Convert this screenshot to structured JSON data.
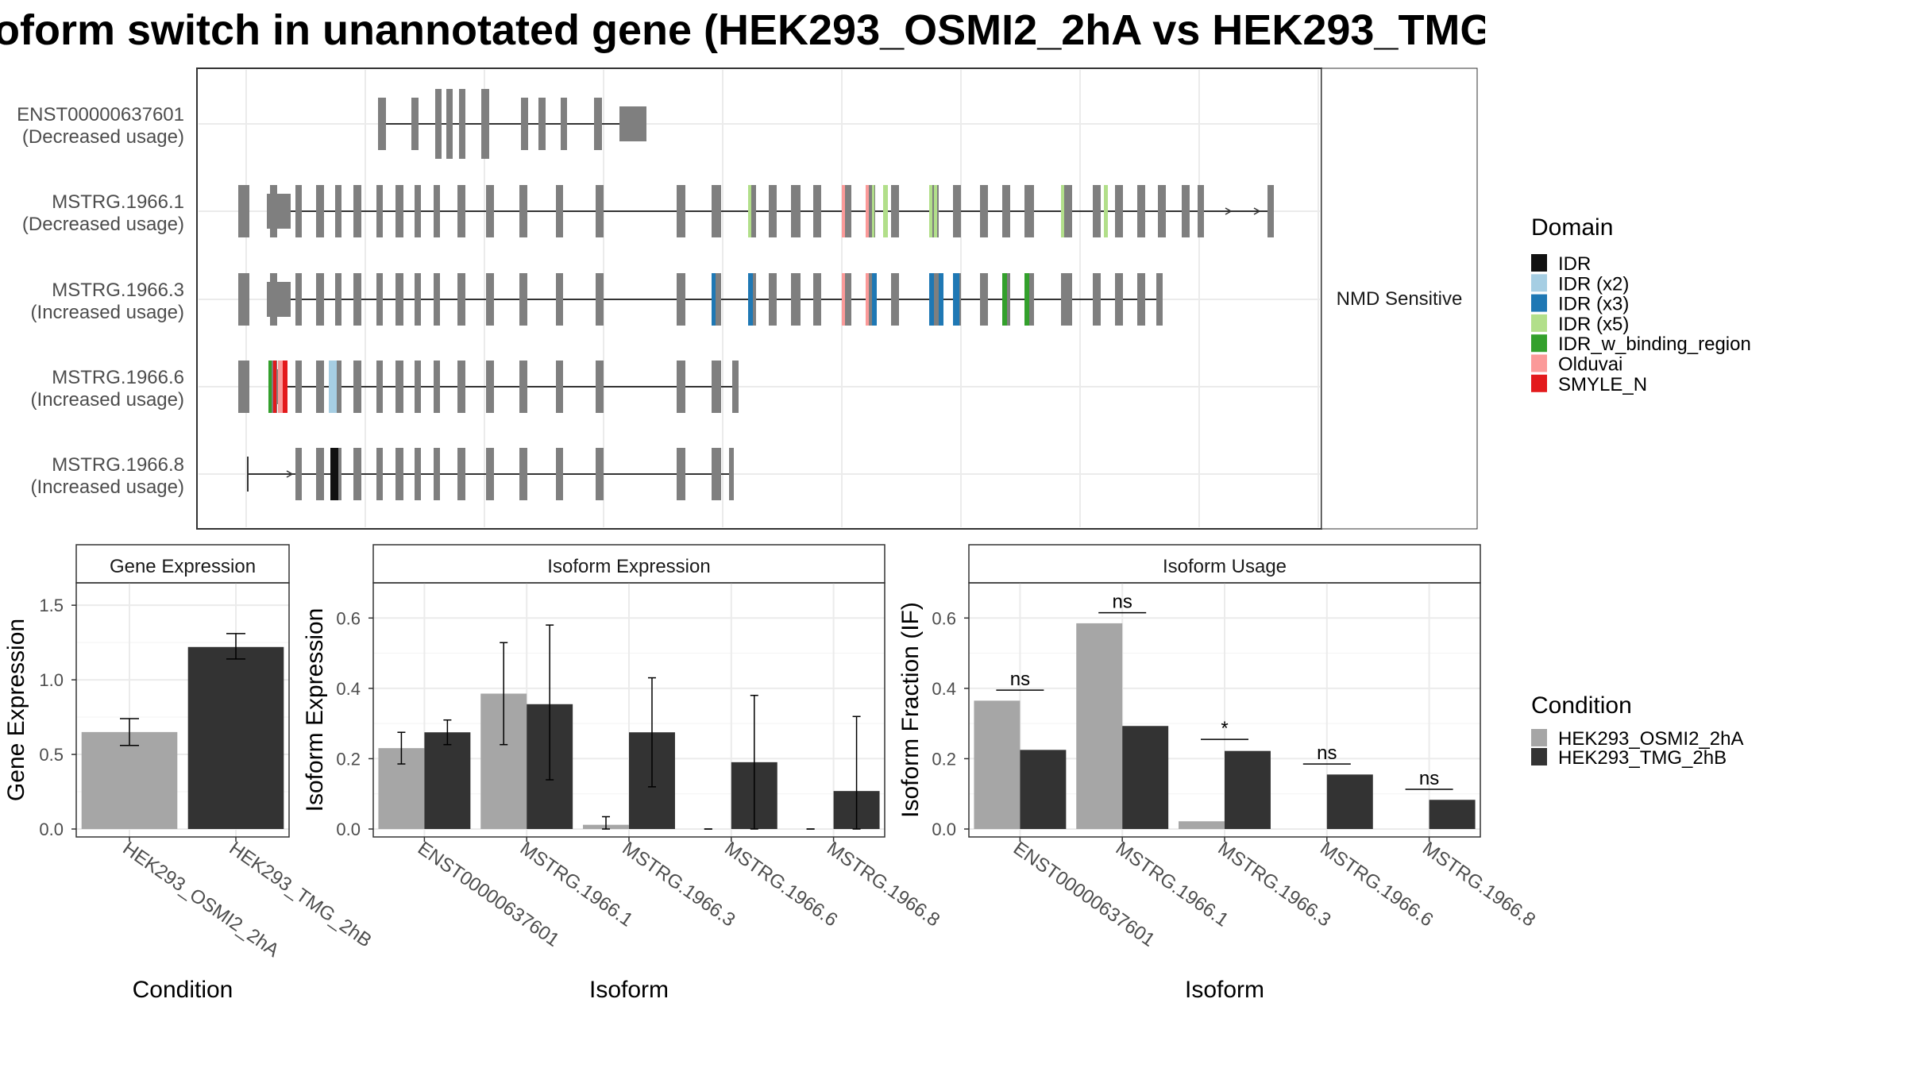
{
  "title": "oform switch in unannotated gene (HEK293_OSMI2_2hA vs HEK293_TMG",
  "colors": {
    "exon_gray": "#7f7f7f",
    "cond_a": "#a6a6a6",
    "cond_b": "#333333",
    "panel_border": "#333333",
    "grid": "#ebebeb",
    "strip_bg": "#ffffff"
  },
  "chart_data": [
    {
      "type": "gene-structure",
      "isoforms": [
        {
          "id": "ENST00000637601",
          "usage": "(Decreased usage)"
        },
        {
          "id": "MSTRG.1966.1",
          "usage": "(Decreased usage)"
        },
        {
          "id": "MSTRG.1966.3",
          "usage": "(Increased usage)"
        },
        {
          "id": "MSTRG.1966.6",
          "usage": "(Increased usage)"
        },
        {
          "id": "MSTRG.1966.8",
          "usage": "(Increased usage)"
        }
      ],
      "facet_label": "NMD Sensitive",
      "legend": {
        "title": "Domain",
        "entries": [
          {
            "label": "IDR",
            "color": "#111111"
          },
          {
            "label": "IDR (x2)",
            "color": "#a6cee3"
          },
          {
            "label": "IDR (x3)",
            "color": "#1f78b4"
          },
          {
            "label": "IDR (x5)",
            "color": "#b2df8a"
          },
          {
            "label": "IDR_w_binding_region",
            "color": "#33a02c"
          },
          {
            "label": "Olduvai",
            "color": "#fb9a99"
          },
          {
            "label": "SMYLE_N",
            "color": "#e31a1c"
          }
        ]
      }
    },
    {
      "type": "bar",
      "panel_title": "Gene Expression",
      "xlabel": "Condition",
      "ylabel": "Gene Expression",
      "ylim": [
        0,
        1.65
      ],
      "yticks": [
        0.0,
        0.5,
        1.0,
        1.5
      ],
      "ytick_labels": [
        "0.0",
        "0.5",
        "1.0",
        "1.5"
      ],
      "categories": [
        "HEK293_OSMI2_2hA",
        "HEK293_TMG_2hB"
      ],
      "values": [
        0.65,
        1.22
      ],
      "err_low": [
        0.56,
        1.14
      ],
      "err_high": [
        0.74,
        1.31
      ]
    },
    {
      "type": "bar",
      "panel_title": "Isoform Expression",
      "xlabel": "Isoform",
      "ylabel": "Isoform Expression",
      "ylim": [
        0,
        0.7
      ],
      "yticks": [
        0.0,
        0.2,
        0.4,
        0.6
      ],
      "ytick_labels": [
        "0.0",
        "0.2",
        "0.4",
        "0.6"
      ],
      "categories": [
        "ENST00000637601",
        "MSTRG.1966.1",
        "MSTRG.1966.3",
        "MSTRG.1966.6",
        "MSTRG.1966.8"
      ],
      "series": [
        {
          "name": "HEK293_OSMI2_2hA",
          "values": [
            0.23,
            0.385,
            0.012,
            0.0,
            0.0
          ],
          "err_low": [
            0.185,
            0.24,
            0.0,
            0.0,
            0.0
          ],
          "err_high": [
            0.275,
            0.53,
            0.035,
            0.0,
            0.0
          ]
        },
        {
          "name": "HEK293_TMG_2hB",
          "values": [
            0.275,
            0.355,
            0.275,
            0.19,
            0.108
          ],
          "err_low": [
            0.24,
            0.14,
            0.12,
            0.0,
            0.0
          ],
          "err_high": [
            0.31,
            0.58,
            0.43,
            0.38,
            0.32
          ]
        }
      ]
    },
    {
      "type": "bar",
      "panel_title": "Isoform Usage",
      "xlabel": "Isoform",
      "ylabel": "Isoform Fraction (IF)",
      "ylim": [
        0,
        0.7
      ],
      "yticks": [
        0.0,
        0.2,
        0.4,
        0.6
      ],
      "ytick_labels": [
        "0.0",
        "0.2",
        "0.4",
        "0.6"
      ],
      "categories": [
        "ENST00000637601",
        "MSTRG.1966.1",
        "MSTRG.1966.3",
        "MSTRG.1966.6",
        "MSTRG.1966.8"
      ],
      "series": [
        {
          "name": "HEK293_OSMI2_2hA",
          "values": [
            0.365,
            0.585,
            0.022,
            0.0,
            0.0
          ]
        },
        {
          "name": "HEK293_TMG_2hB",
          "values": [
            0.225,
            0.293,
            0.222,
            0.155,
            0.083
          ]
        }
      ],
      "significance": [
        {
          "label": "ns",
          "y": 0.395
        },
        {
          "label": "ns",
          "y": 0.615
        },
        {
          "label": "*",
          "y": 0.255
        },
        {
          "label": "ns",
          "y": 0.185
        },
        {
          "label": "ns",
          "y": 0.113
        }
      ]
    }
  ],
  "condition_legend": {
    "title": "Condition",
    "entries": [
      "HEK293_OSMI2_2hA",
      "HEK293_TMG_2hB"
    ]
  }
}
